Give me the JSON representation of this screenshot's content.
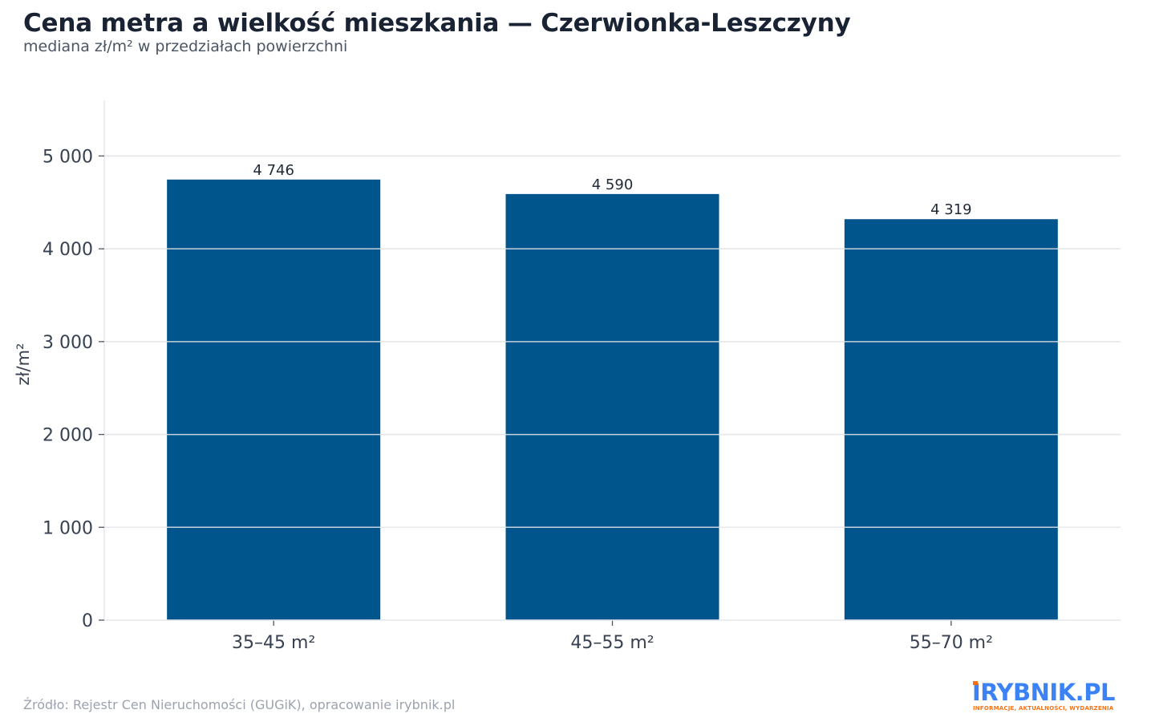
{
  "title": "Cena metra a wielkość mieszkania — Czerwionka-Leszczyny",
  "subtitle": "mediana zł/m² w przedziałach powierzchni",
  "source": "Źródło: Rejestr Cen Nieruchomości (GUGiK), opracowanie irybnik.pl",
  "logo": {
    "main": "IRYBNIK.PL",
    "tagline": "INFORMACJE, AKTUALNOŚCI, WYDARZENIA"
  },
  "colors": {
    "bar": "#00558c",
    "grid": "#e5e7eb",
    "axis_text": "#374151",
    "label_text": "#1f2937"
  },
  "chart_data": {
    "type": "bar",
    "title": "Cena metra a wielkość mieszkania — Czerwionka-Leszczyny",
    "subtitle": "mediana zł/m² w przedziałach powierzchni",
    "xlabel": "",
    "ylabel": "zł/m²",
    "categories": [
      "35–45 m²",
      "45–55 m²",
      "55–70 m²"
    ],
    "values": [
      4746,
      4590,
      4319
    ],
    "value_labels": [
      "4 746",
      "4 590",
      "4 319"
    ],
    "ylim": [
      0,
      5600
    ],
    "yticks": [
      0,
      1000,
      2000,
      3000,
      4000,
      5000
    ],
    "ytick_labels": [
      "0",
      "1 000",
      "2 000",
      "3 000",
      "4 000",
      "5 000"
    ],
    "grid": true,
    "legend": "none"
  }
}
